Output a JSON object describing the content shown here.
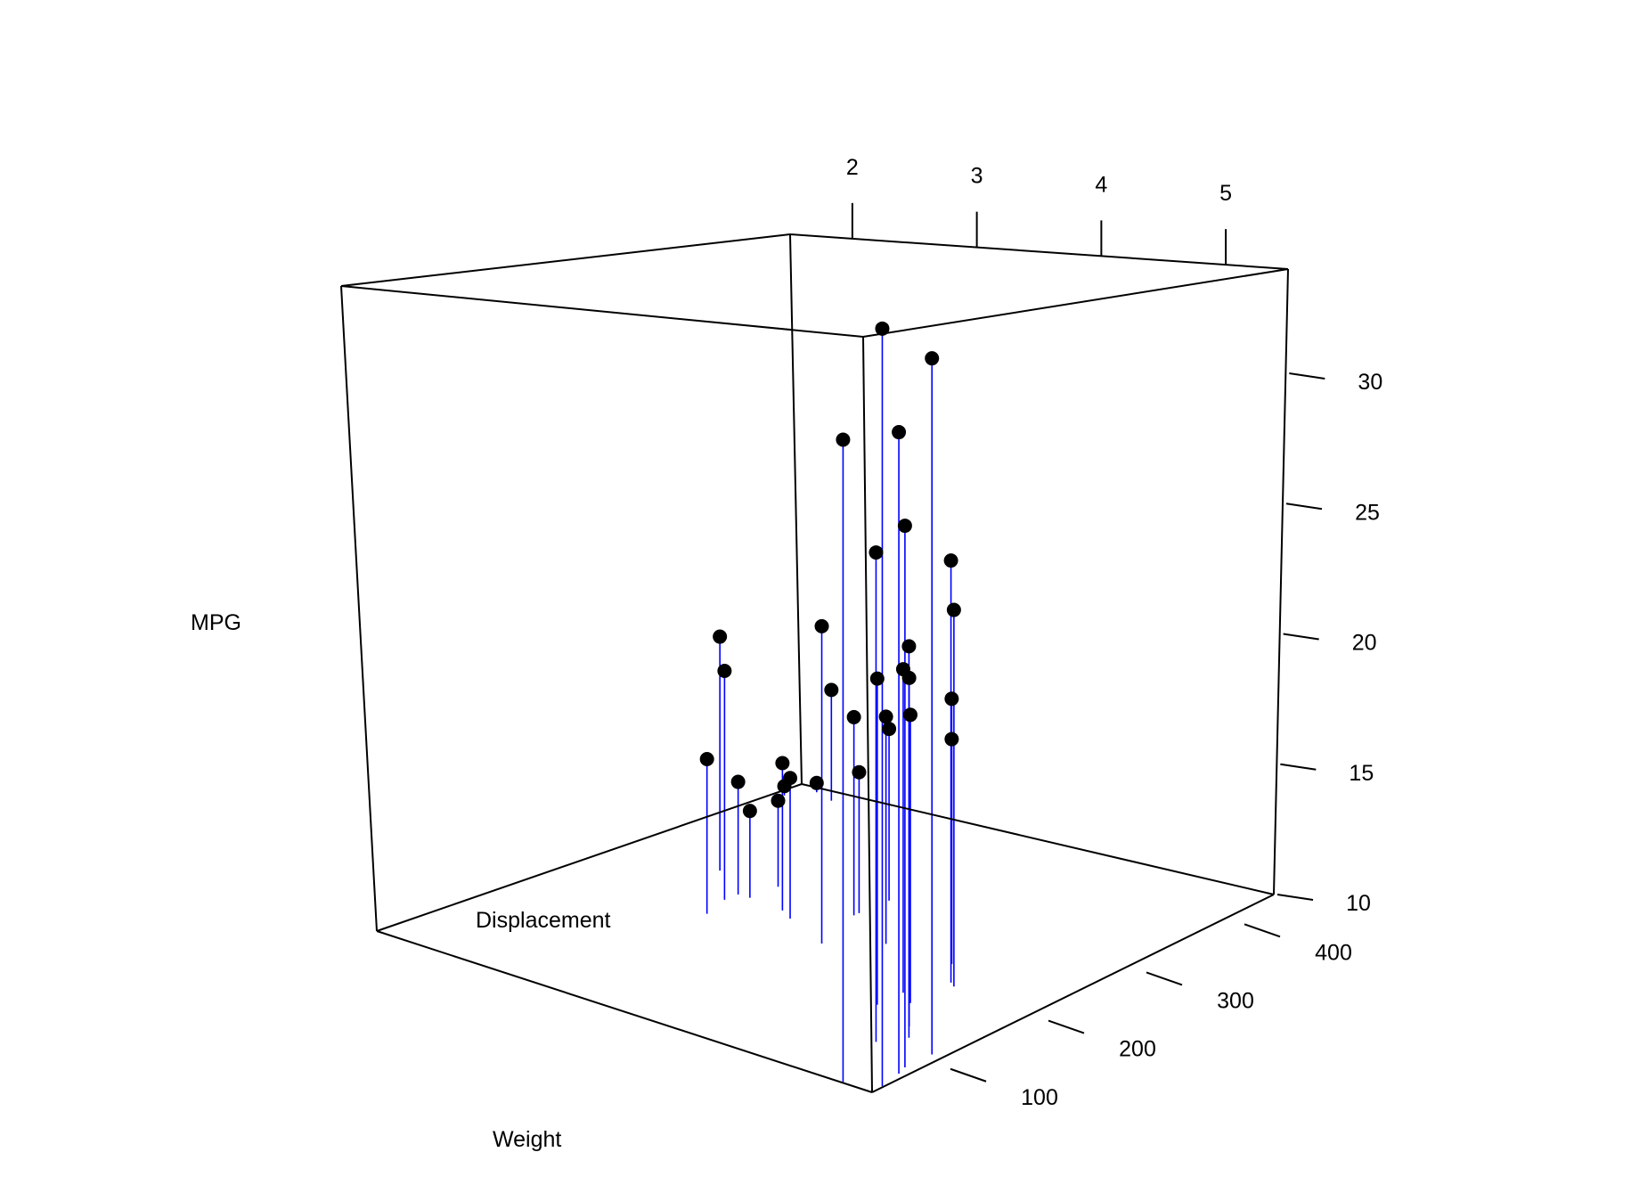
{
  "chart_data": {
    "type": "scatter",
    "variant": "3d-scatter-with-drop-lines",
    "title": "",
    "xlabel": "Weight",
    "ylabel": "Displacement",
    "zlabel": "MPG",
    "x_ticks": [
      "2",
      "3",
      "4",
      "5"
    ],
    "y_ticks": [
      "100",
      "200",
      "300",
      "400"
    ],
    "z_ticks": [
      "10",
      "15",
      "20",
      "25",
      "30"
    ],
    "xlim": [
      1.5,
      5.5
    ],
    "ylim": [
      70,
      480
    ],
    "zlim": [
      10,
      34
    ],
    "grid": false,
    "legend": "none",
    "colors": {
      "points": "#000000",
      "drop_lines": "#0000ff",
      "box": "#000000"
    },
    "points": [
      {
        "weight": 1.615,
        "displacement": 71.1,
        "mpg": 33.9
      },
      {
        "weight": 2.2,
        "displacement": 78.7,
        "mpg": 32.4
      },
      {
        "weight": 1.513,
        "displacement": 95.1,
        "mpg": 30.4
      },
      {
        "weight": 1.835,
        "displacement": 75.7,
        "mpg": 30.4
      },
      {
        "weight": 1.935,
        "displacement": 79.0,
        "mpg": 27.3
      },
      {
        "weight": 2.14,
        "displacement": 120.3,
        "mpg": 26.0
      },
      {
        "weight": 2.32,
        "displacement": 108.0,
        "mpg": 22.8
      },
      {
        "weight": 3.19,
        "displacement": 146.7,
        "mpg": 24.4
      },
      {
        "weight": 2.465,
        "displacement": 120.1,
        "mpg": 21.5
      },
      {
        "weight": 3.15,
        "displacement": 140.8,
        "mpg": 22.8
      },
      {
        "weight": 2.62,
        "displacement": 160.0,
        "mpg": 21.0
      },
      {
        "weight": 2.875,
        "displacement": 160.0,
        "mpg": 21.0
      },
      {
        "weight": 2.77,
        "displacement": 145.0,
        "mpg": 19.7
      },
      {
        "weight": 3.215,
        "displacement": 258.0,
        "mpg": 21.4
      },
      {
        "weight": 3.44,
        "displacement": 167.6,
        "mpg": 19.2
      },
      {
        "weight": 3.44,
        "displacement": 167.6,
        "mpg": 17.8
      },
      {
        "weight": 3.46,
        "displacement": 225.0,
        "mpg": 18.1
      },
      {
        "weight": 3.44,
        "displacement": 360.0,
        "mpg": 18.7
      },
      {
        "weight": 3.845,
        "displacement": 400.0,
        "mpg": 19.2
      },
      {
        "weight": 3.57,
        "displacement": 360.0,
        "mpg": 14.3
      },
      {
        "weight": 3.57,
        "displacement": 350.0,
        "mpg": 13.3
      },
      {
        "weight": 3.52,
        "displacement": 318.0,
        "mpg": 15.5
      },
      {
        "weight": 3.435,
        "displacement": 304.0,
        "mpg": 15.2
      },
      {
        "weight": 3.73,
        "displacement": 275.8,
        "mpg": 17.3
      },
      {
        "weight": 3.78,
        "displacement": 275.8,
        "mpg": 15.2
      },
      {
        "weight": 4.07,
        "displacement": 275.8,
        "mpg": 16.4
      },
      {
        "weight": 3.17,
        "displacement": 351.0,
        "mpg": 15.8
      },
      {
        "weight": 3.84,
        "displacement": 350.0,
        "mpg": 13.3
      },
      {
        "weight": 5.25,
        "displacement": 472.0,
        "mpg": 10.4
      },
      {
        "weight": 5.424,
        "displacement": 460.0,
        "mpg": 10.4
      },
      {
        "weight": 5.345,
        "displacement": 440.0,
        "mpg": 14.7
      }
    ]
  }
}
